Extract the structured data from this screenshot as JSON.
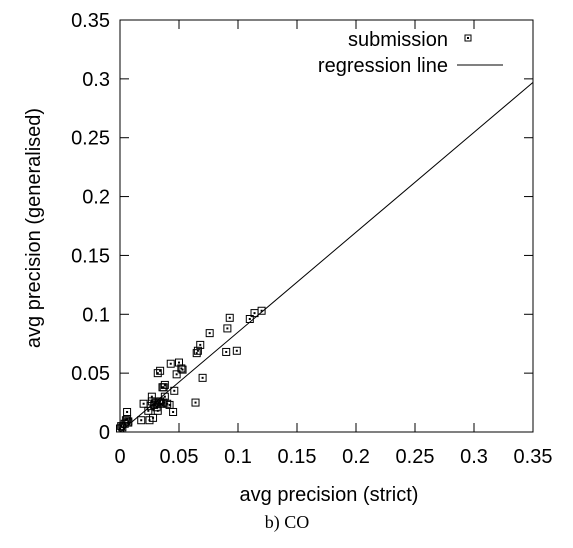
{
  "caption": "b) CO",
  "chart_data": {
    "type": "scatter",
    "xlabel": "avg precision (strict)",
    "ylabel": "avg precision (generalised)",
    "xlim": [
      0,
      0.35
    ],
    "ylim": [
      0,
      0.35
    ],
    "x_ticks": [
      "0",
      "0.05",
      "0.1",
      "0.15",
      "0.2",
      "0.25",
      "0.3",
      "0.35"
    ],
    "y_ticks": [
      "0",
      "0.05",
      "0.1",
      "0.15",
      "0.2",
      "0.25",
      "0.3",
      "0.35"
    ],
    "legend_position": "top-right",
    "series": [
      {
        "name": "submission",
        "marker": "square",
        "points": [
          [
            0.0,
            0.003
          ],
          [
            0.001,
            0.005
          ],
          [
            0.002,
            0.004
          ],
          [
            0.004,
            0.007
          ],
          [
            0.005,
            0.01
          ],
          [
            0.006,
            0.011
          ],
          [
            0.006,
            0.017
          ],
          [
            0.007,
            0.009
          ],
          [
            0.007,
            0.008
          ],
          [
            0.018,
            0.01
          ],
          [
            0.02,
            0.024
          ],
          [
            0.024,
            0.018
          ],
          [
            0.025,
            0.01
          ],
          [
            0.026,
            0.022
          ],
          [
            0.027,
            0.03
          ],
          [
            0.027,
            0.026
          ],
          [
            0.028,
            0.012
          ],
          [
            0.029,
            0.023
          ],
          [
            0.03,
            0.025
          ],
          [
            0.031,
            0.021
          ],
          [
            0.032,
            0.05
          ],
          [
            0.032,
            0.018
          ],
          [
            0.033,
            0.025
          ],
          [
            0.034,
            0.052
          ],
          [
            0.034,
            0.026
          ],
          [
            0.035,
            0.024
          ],
          [
            0.036,
            0.038
          ],
          [
            0.037,
            0.038
          ],
          [
            0.037,
            0.025
          ],
          [
            0.038,
            0.04
          ],
          [
            0.038,
            0.03
          ],
          [
            0.04,
            0.024
          ],
          [
            0.042,
            0.023
          ],
          [
            0.043,
            0.058
          ],
          [
            0.045,
            0.017
          ],
          [
            0.046,
            0.035
          ],
          [
            0.048,
            0.049
          ],
          [
            0.05,
            0.059
          ],
          [
            0.052,
            0.054
          ],
          [
            0.053,
            0.053
          ],
          [
            0.064,
            0.025
          ],
          [
            0.065,
            0.067
          ],
          [
            0.066,
            0.069
          ],
          [
            0.068,
            0.074
          ],
          [
            0.07,
            0.046
          ],
          [
            0.076,
            0.084
          ],
          [
            0.09,
            0.068
          ],
          [
            0.091,
            0.088
          ],
          [
            0.093,
            0.097
          ],
          [
            0.099,
            0.069
          ],
          [
            0.11,
            0.096
          ],
          [
            0.114,
            0.101
          ],
          [
            0.12,
            0.103
          ]
        ]
      },
      {
        "name": "regression line",
        "line": [
          [
            0.0,
            0.0
          ],
          [
            0.35,
            0.297
          ]
        ]
      }
    ]
  }
}
